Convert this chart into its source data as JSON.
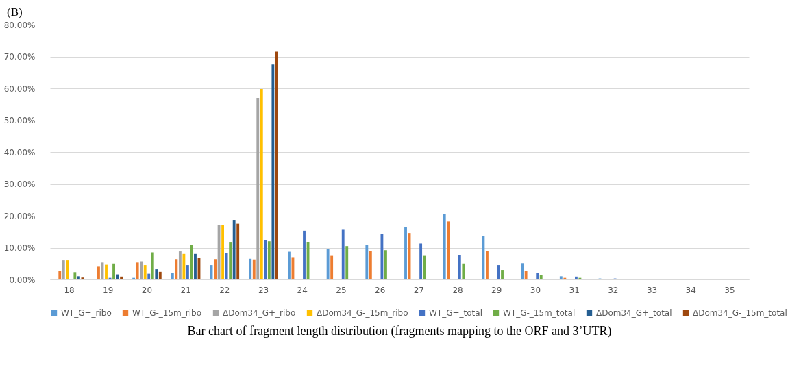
{
  "chart_data": {
    "type": "bar",
    "title": "Bar chart of fragment length distribution (fragments mapping to the ORF and 3’UTR)",
    "annotations": [
      "(B)"
    ],
    "categories": [
      "18",
      "19",
      "20",
      "21",
      "22",
      "23",
      "24",
      "25",
      "26",
      "27",
      "28",
      "29",
      "30",
      "31",
      "32",
      "33",
      "34",
      "35"
    ],
    "series": [
      {
        "name": "WT_G+_ribo",
        "color": "#5b9bd5",
        "values": [
          0,
          0,
          0.5,
          2,
          4.5,
          6.5,
          8.7,
          9.6,
          10.8,
          16.5,
          20.5,
          13.6,
          5.1,
          1,
          0.3,
          0,
          0,
          0
        ]
      },
      {
        "name": "WT_G-_15m_ribo",
        "color": "#ed7d31",
        "values": [
          2.7,
          4,
          5.3,
          6.4,
          6.4,
          6.3,
          7,
          7.4,
          9,
          14.6,
          18.2,
          9,
          2.6,
          0.5,
          0.2,
          0,
          0,
          0
        ]
      },
      {
        "name": "ΔDom34_G+_ribo",
        "color": "#a5a5a5",
        "values": [
          6,
          5.3,
          5.7,
          8.8,
          17.2,
          57,
          0,
          0,
          0,
          0,
          0,
          0,
          0,
          0,
          0,
          0,
          0,
          0
        ]
      },
      {
        "name": "ΔDom34_G-_15m_ribo",
        "color": "#ffc000",
        "values": [
          6,
          4.6,
          4.5,
          8,
          17.2,
          59.8,
          0,
          0,
          0,
          0,
          0,
          0,
          0,
          0,
          0,
          0,
          0,
          0
        ]
      },
      {
        "name": "WT_G+_total",
        "color": "#4472c4",
        "values": [
          0,
          0.5,
          1.8,
          4.5,
          8.3,
          12.3,
          15.3,
          15.6,
          14.3,
          11.3,
          7.7,
          4.5,
          2.1,
          0.9,
          0.3,
          0,
          0,
          0
        ]
      },
      {
        "name": "WT_G-_15m_total",
        "color": "#70ad47",
        "values": [
          2.3,
          5,
          8.5,
          10.9,
          11.6,
          12,
          11.7,
          10.5,
          9.2,
          7.4,
          5,
          3,
          1.5,
          0.5,
          0,
          0,
          0,
          0
        ]
      },
      {
        "name": "ΔDom34_G+_total",
        "color": "#255e91",
        "values": [
          1,
          1.6,
          3.2,
          8,
          18.7,
          67.5,
          0,
          0,
          0,
          0,
          0,
          0,
          0,
          0,
          0,
          0,
          0,
          0
        ]
      },
      {
        "name": "ΔDom34_G-_15m_total",
        "color": "#9e480e",
        "values": [
          0.6,
          0.9,
          2.4,
          6.8,
          17.5,
          71.5,
          0,
          0,
          0,
          0,
          0,
          0,
          0,
          0,
          0,
          0,
          0,
          0
        ]
      }
    ],
    "ylim": [
      0,
      80
    ],
    "yticks": [
      {
        "value": 0,
        "label": "0.00%"
      },
      {
        "value": 10,
        "label": "10.00%"
      },
      {
        "value": 20,
        "label": "20.00%"
      },
      {
        "value": 30,
        "label": "30.00%"
      },
      {
        "value": 40,
        "label": "40.00%"
      },
      {
        "value": 50,
        "label": "50.00%"
      },
      {
        "value": 60,
        "label": "60.00%"
      },
      {
        "value": 70,
        "label": "70.00%"
      },
      {
        "value": 80,
        "label": "80.00%"
      }
    ],
    "grid": "y",
    "legend": "bottom"
  }
}
